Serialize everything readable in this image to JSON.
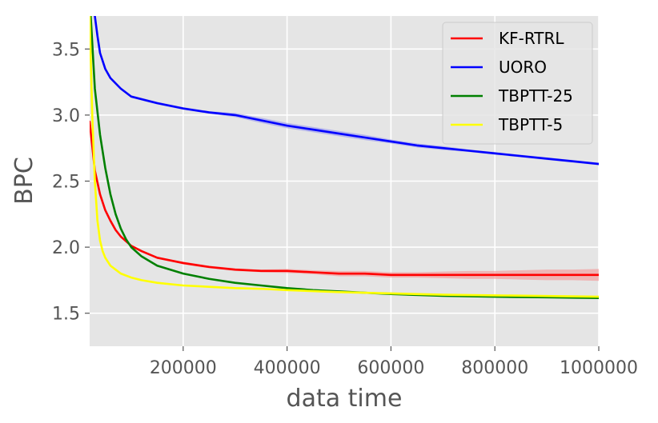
{
  "chart_data": {
    "type": "line",
    "xlabel": "data time",
    "ylabel": "BPC",
    "xlim": [
      20000,
      1000000
    ],
    "ylim": [
      1.25,
      3.75
    ],
    "xticks": [
      200000,
      400000,
      600000,
      800000,
      1000000
    ],
    "xtick_labels": [
      "200000",
      "400000",
      "600000",
      "800000",
      "1000000"
    ],
    "yticks": [
      1.5,
      2.0,
      2.5,
      3.0,
      3.5
    ],
    "ytick_labels": [
      "1.5",
      "2.0",
      "2.5",
      "3.0",
      "3.5"
    ],
    "grid": true,
    "legend_position": "top-right",
    "background_color": "#e5e5e5",
    "series": [
      {
        "name": "KF-RTRL",
        "color": "#ff0000",
        "band_color": "#f4a0a0",
        "x": [
          20000,
          30000,
          40000,
          50000,
          60000,
          70000,
          80000,
          100000,
          120000,
          150000,
          200000,
          250000,
          300000,
          350000,
          400000,
          450000,
          500000,
          550000,
          600000,
          650000,
          700000,
          750000,
          800000,
          850000,
          900000,
          950000,
          1000000
        ],
        "y": [
          2.95,
          2.58,
          2.4,
          2.28,
          2.2,
          2.13,
          2.08,
          2.01,
          1.97,
          1.92,
          1.88,
          1.85,
          1.83,
          1.82,
          1.82,
          1.81,
          1.8,
          1.8,
          1.79,
          1.79,
          1.79,
          1.79,
          1.79,
          1.79,
          1.79,
          1.79,
          1.79
        ],
        "band": [
          0,
          0,
          0,
          0,
          0,
          0,
          0,
          0,
          0,
          0,
          0.01,
          0.01,
          0.01,
          0.01,
          0.015,
          0.015,
          0.02,
          0.02,
          0.02,
          0.02,
          0.025,
          0.03,
          0.03,
          0.035,
          0.04,
          0.04,
          0.045
        ]
      },
      {
        "name": "UORO",
        "color": "#0000ff",
        "band_color": "#a0a0f0",
        "x": [
          30000,
          35000,
          40000,
          50000,
          60000,
          80000,
          100000,
          150000,
          200000,
          250000,
          300000,
          350000,
          400000,
          450000,
          500000,
          550000,
          600000,
          650000,
          700000,
          750000,
          800000,
          850000,
          900000,
          950000,
          1000000
        ],
        "y": [
          3.75,
          3.6,
          3.47,
          3.35,
          3.28,
          3.2,
          3.14,
          3.09,
          3.05,
          3.02,
          3.0,
          2.96,
          2.92,
          2.89,
          2.86,
          2.83,
          2.8,
          2.77,
          2.75,
          2.73,
          2.71,
          2.69,
          2.67,
          2.65,
          2.63
        ],
        "band": [
          0,
          0,
          0,
          0,
          0.01,
          0.01,
          0.01,
          0.01,
          0.01,
          0.01,
          0.015,
          0.02,
          0.02,
          0.02,
          0.02,
          0.02,
          0.015,
          0.015,
          0.015,
          0.01,
          0.01,
          0.01,
          0.01,
          0.01,
          0.01
        ]
      },
      {
        "name": "TBPTT-25",
        "color": "#008000",
        "band_color": "#80c080",
        "x": [
          22000,
          30000,
          40000,
          50000,
          60000,
          70000,
          80000,
          90000,
          100000,
          120000,
          150000,
          200000,
          250000,
          300000,
          350000,
          400000,
          450000,
          500000,
          600000,
          700000,
          800000,
          900000,
          1000000
        ],
        "y": [
          3.75,
          3.2,
          2.85,
          2.6,
          2.4,
          2.25,
          2.14,
          2.06,
          2.0,
          1.93,
          1.86,
          1.8,
          1.76,
          1.73,
          1.71,
          1.69,
          1.675,
          1.665,
          1.645,
          1.632,
          1.625,
          1.62,
          1.615
        ],
        "band": [
          0,
          0,
          0,
          0,
          0,
          0,
          0,
          0,
          0,
          0,
          0,
          0,
          0,
          0,
          0,
          0,
          0,
          0,
          0,
          0,
          0,
          0,
          0
        ]
      },
      {
        "name": "TBPTT-5",
        "color": "#ffff00",
        "band_color": "#ffff99",
        "x": [
          20000,
          25000,
          30000,
          35000,
          40000,
          45000,
          50000,
          60000,
          70000,
          80000,
          100000,
          120000,
          150000,
          200000,
          250000,
          300000,
          350000,
          400000,
          500000,
          600000,
          700000,
          800000,
          900000,
          1000000
        ],
        "y": [
          3.75,
          3.0,
          2.5,
          2.2,
          2.05,
          1.97,
          1.92,
          1.86,
          1.83,
          1.8,
          1.77,
          1.75,
          1.73,
          1.71,
          1.7,
          1.69,
          1.685,
          1.675,
          1.66,
          1.65,
          1.64,
          1.635,
          1.63,
          1.625
        ],
        "band": [
          0,
          0,
          0,
          0,
          0,
          0,
          0,
          0,
          0,
          0,
          0,
          0,
          0,
          0,
          0,
          0,
          0,
          0,
          0,
          0,
          0,
          0,
          0,
          0
        ]
      }
    ]
  }
}
